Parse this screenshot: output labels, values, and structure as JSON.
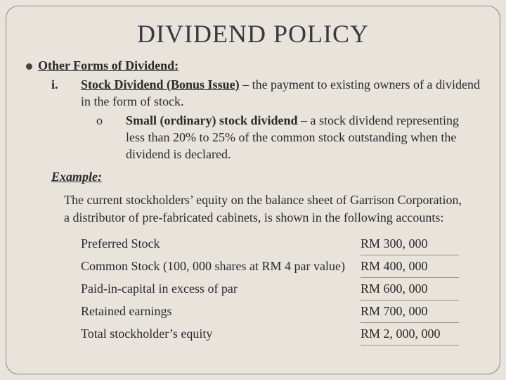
{
  "title": "DIVIDEND POLICY",
  "section": {
    "heading": "Other Forms of Dividend:",
    "item": {
      "marker": "i.",
      "term": "Stock Dividend (Bonus Issue)",
      "rest": " – the payment to existing owners of a dividend in the form of stock.",
      "sub": {
        "marker": "o",
        "term": "Small (ordinary) stock dividend",
        "rest": " – a stock dividend representing less than 20% to 25% of the common stock outstanding when the dividend is declared."
      }
    }
  },
  "example": {
    "label": "Example:",
    "text": "The current stockholders’ equity on the balance sheet of Garrison Corporation, a distributor of pre-fabricated cabinets, is shown in the following accounts:"
  },
  "table": {
    "rows": [
      {
        "label": "Preferred Stock",
        "value": "RM 300, 000"
      },
      {
        "label": "Common Stock (100, 000 shares at RM 4 par value)",
        "value": "RM 400, 000"
      },
      {
        "label": "Paid-in-capital in excess of par",
        "value": "RM 600, 000"
      },
      {
        "label": "Retained earnings",
        "value": "RM 700, 000"
      },
      {
        "label": "Total stockholder’s equity",
        "value": "RM 2, 000, 000"
      }
    ]
  },
  "style": {
    "background": "#e8e4db",
    "title_fontsize": 36,
    "body_fontsize": 18,
    "underline_color": "#9a8f7a",
    "frame_radius": 18
  }
}
